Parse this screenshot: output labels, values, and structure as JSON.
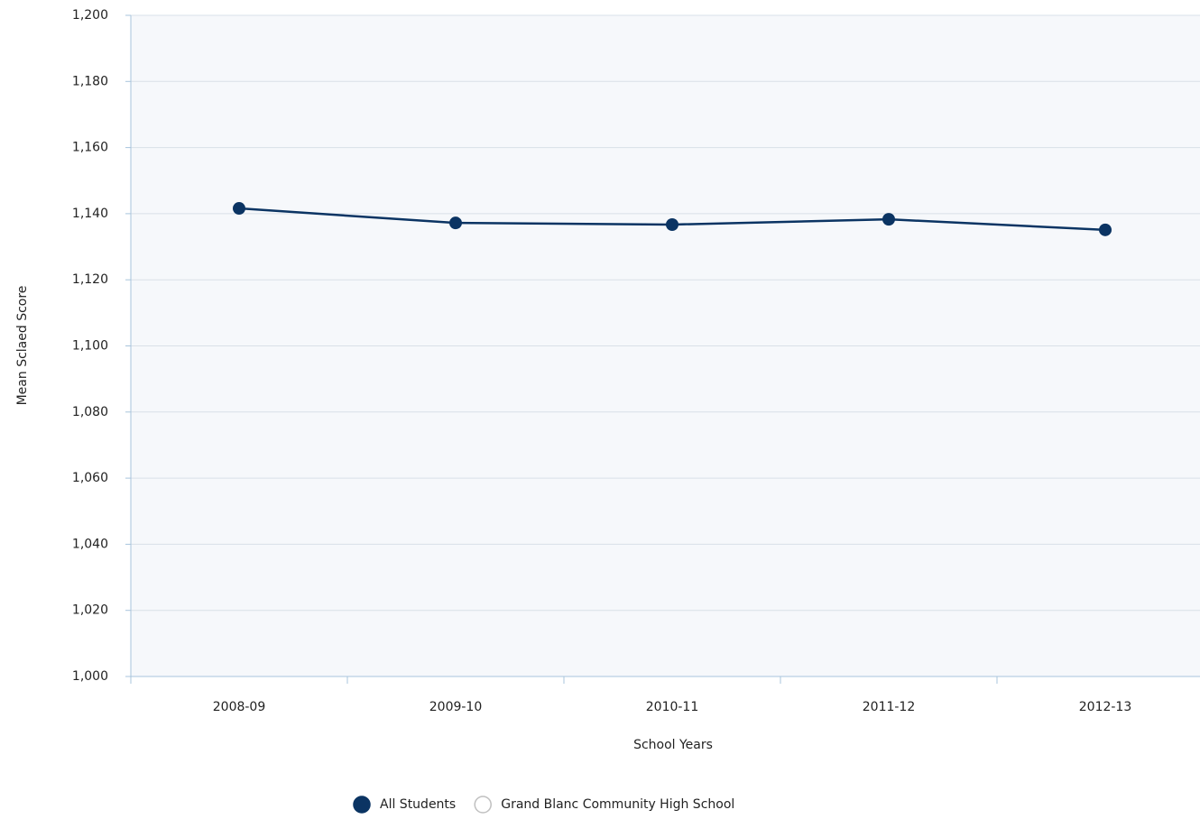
{
  "chart_data": {
    "type": "line",
    "x_label": "School Years",
    "y_label": "Mean Sclaed Score",
    "categories": [
      "2008-09",
      "2009-10",
      "2010-11",
      "2011-12",
      "2012-13"
    ],
    "series": [
      {
        "name": "All Students",
        "color": "#0b3463",
        "visible": true,
        "values": [
          1141.6,
          1137.2,
          1136.7,
          1138.3,
          1135.1
        ]
      },
      {
        "name": "Grand Blanc Community High School",
        "color": "#c0c0c0",
        "visible": false,
        "values": [
          null,
          null,
          null,
          null,
          null
        ]
      }
    ],
    "ylim": [
      1000,
      1200
    ],
    "yticks": [
      {
        "value": 1000,
        "label": "1,000"
      },
      {
        "value": 1020,
        "label": "1,020"
      },
      {
        "value": 1040,
        "label": "1,040"
      },
      {
        "value": 1060,
        "label": "1,060"
      },
      {
        "value": 1080,
        "label": "1,080"
      },
      {
        "value": 1100,
        "label": "1,100"
      },
      {
        "value": 1120,
        "label": "1,120"
      },
      {
        "value": 1140,
        "label": "1,140"
      },
      {
        "value": 1160,
        "label": "1,160"
      },
      {
        "value": 1180,
        "label": "1,180"
      },
      {
        "value": 1200,
        "label": "1,200"
      }
    ],
    "grid": true,
    "legend": "bottom"
  }
}
